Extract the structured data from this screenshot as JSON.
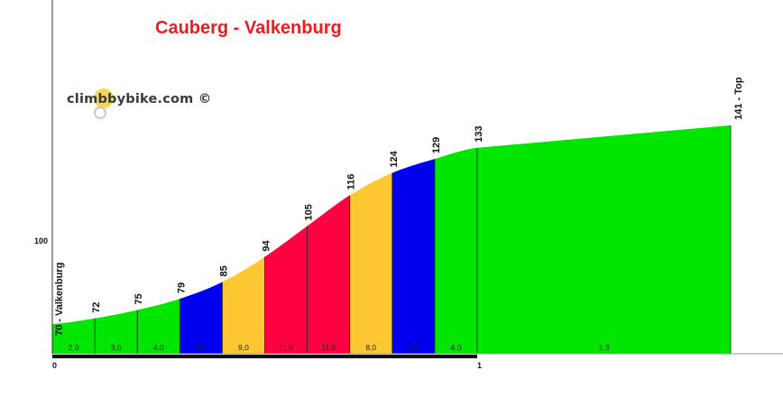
{
  "title": "Cauberg - Valkenburg",
  "logo_text": "climbbybike.com ©",
  "chart_data": {
    "type": "area",
    "title": "Cauberg - Valkenburg",
    "x_unit": "km",
    "xlim": [
      0,
      1.6
    ],
    "ylim": [
      40,
      170
    ],
    "y_ticks": [
      100
    ],
    "x_ticks": [
      0,
      1
    ],
    "colors": {
      "green": "#00e600",
      "blue": "#0000ee",
      "orange": "#ffc832",
      "red": "#ff0040"
    },
    "points": [
      {
        "x": 0.0,
        "y": 70,
        "label": "70 - Valkenburg"
      },
      {
        "x": 0.1,
        "y": 72,
        "label": "72"
      },
      {
        "x": 0.2,
        "y": 75,
        "label": "75"
      },
      {
        "x": 0.3,
        "y": 79,
        "label": "79"
      },
      {
        "x": 0.4,
        "y": 85,
        "label": "85"
      },
      {
        "x": 0.5,
        "y": 94,
        "label": "94"
      },
      {
        "x": 0.6,
        "y": 105,
        "label": "105"
      },
      {
        "x": 0.7,
        "y": 116,
        "label": "116"
      },
      {
        "x": 0.8,
        "y": 124,
        "label": "124"
      },
      {
        "x": 0.9,
        "y": 129,
        "label": "129"
      },
      {
        "x": 1.0,
        "y": 133,
        "label": "133"
      },
      {
        "x": 1.6,
        "y": 141,
        "label": "141 - Top"
      }
    ],
    "segments": [
      {
        "gradient": "2,0",
        "color": "green"
      },
      {
        "gradient": "3,0",
        "color": "green"
      },
      {
        "gradient": "4,0",
        "color": "green"
      },
      {
        "gradient": "6,0",
        "color": "blue"
      },
      {
        "gradient": "9,0",
        "color": "orange"
      },
      {
        "gradient": "11,0",
        "color": "red"
      },
      {
        "gradient": "11,0",
        "color": "red"
      },
      {
        "gradient": "8,0",
        "color": "orange"
      },
      {
        "gradient": "5,0",
        "color": "blue"
      },
      {
        "gradient": "4,0",
        "color": "green"
      },
      {
        "gradient": "1,3",
        "color": "green"
      }
    ]
  }
}
